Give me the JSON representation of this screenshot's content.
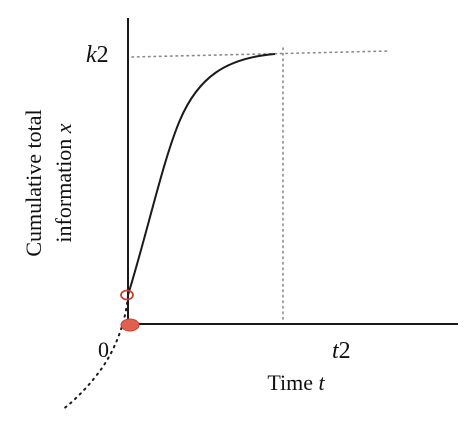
{
  "labels": {
    "k2_var": "k",
    "k2_sub": "2",
    "t2_var": "t",
    "t2_sub": "2",
    "origin": "0",
    "ylabel_line1": "Cumulative total",
    "ylabel_line2": "information ",
    "ylabel_var": "x",
    "xlabel_text": "Time ",
    "xlabel_var": "t"
  },
  "colors": {
    "curve": "#1a1a1a",
    "axis": "#1a1a1a",
    "guide": "#8a8a8a",
    "marker": "#e06050",
    "marker_stroke": "#c8402f"
  }
}
